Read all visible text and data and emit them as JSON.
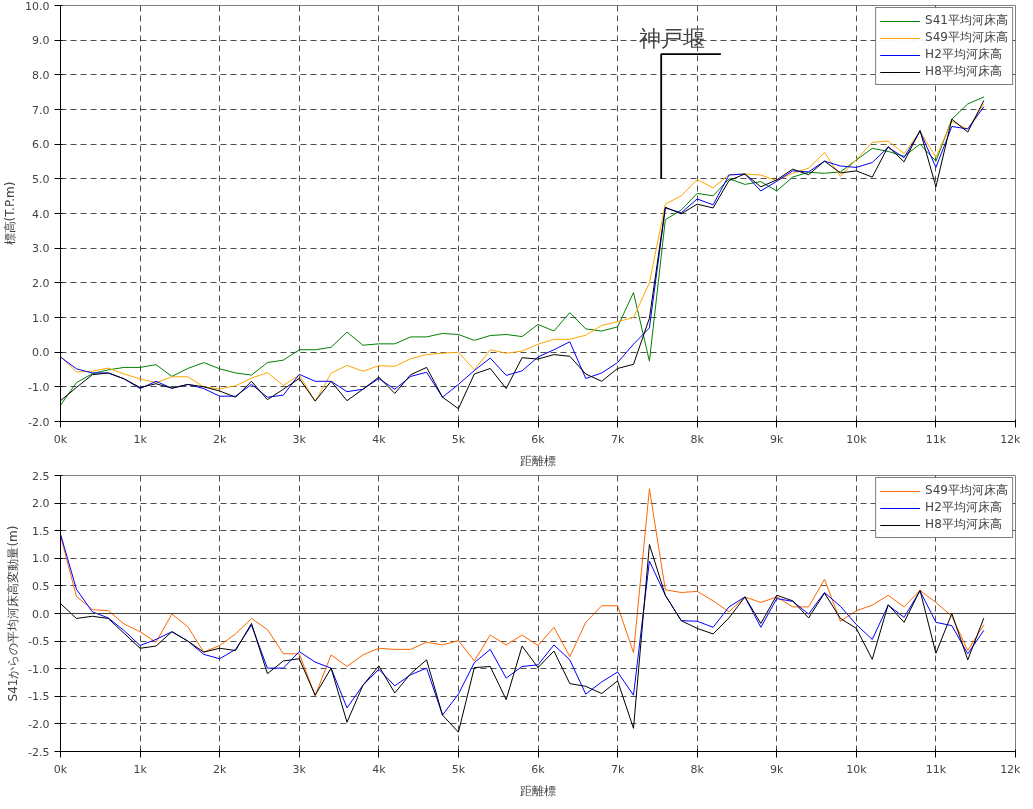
{
  "chart_data": [
    {
      "type": "line",
      "ylabel": "標高(T.P.m)",
      "xlabel": "距離標",
      "legend": "top right",
      "grid": true,
      "line_style": "solid",
      "xlim": [
        0,
        12
      ],
      "ylim": [
        -2,
        10
      ],
      "xticks": [
        {
          "value": 0,
          "label": "0k"
        },
        {
          "value": 1,
          "label": "1k"
        },
        {
          "value": 2,
          "label": "2k"
        },
        {
          "value": 3,
          "label": "3k"
        },
        {
          "value": 4,
          "label": "4k"
        },
        {
          "value": 5,
          "label": "5k"
        },
        {
          "value": 6,
          "label": "6k"
        },
        {
          "value": 7,
          "label": "7k"
        },
        {
          "value": 8,
          "label": "8k"
        },
        {
          "value": 9,
          "label": "9k"
        },
        {
          "value": 10,
          "label": "10k"
        },
        {
          "value": 11,
          "label": "11k"
        },
        {
          "value": 12,
          "label": "12k"
        }
      ],
      "yticks": [
        {
          "value": -2,
          "label": "-2.0"
        },
        {
          "value": -1,
          "label": "-1.0"
        },
        {
          "value": 0,
          "label": "0.0"
        },
        {
          "value": 1,
          "label": "1.0"
        },
        {
          "value": 2,
          "label": "2.0"
        },
        {
          "value": 3,
          "label": "3.0"
        },
        {
          "value": 4,
          "label": "4.0"
        },
        {
          "value": 5,
          "label": "5.0"
        },
        {
          "value": 6,
          "label": "6.0"
        },
        {
          "value": 7,
          "label": "7.0"
        },
        {
          "value": 8,
          "label": "8.0"
        },
        {
          "value": 9,
          "label": "9.0"
        },
        {
          "value": 10,
          "label": "10.0"
        }
      ],
      "annotations": [
        "神戸堰"
      ],
      "x": [
        0,
        0.2,
        0.4,
        0.6,
        0.8,
        1.0,
        1.2,
        1.4,
        1.6,
        1.8,
        2.0,
        2.2,
        2.4,
        2.6,
        2.8,
        3.0,
        3.2,
        3.4,
        3.6,
        3.8,
        4.0,
        4.2,
        4.4,
        4.6,
        4.8,
        5.0,
        5.2,
        5.4,
        5.6,
        5.8,
        6.0,
        6.2,
        6.4,
        6.6,
        6.8,
        7.0,
        7.2,
        7.4,
        7.6,
        7.8,
        8.0,
        8.2,
        8.4,
        8.6,
        8.8,
        9.0,
        9.2,
        9.4,
        9.6,
        9.8,
        10.0,
        10.2,
        10.4,
        10.6,
        10.8,
        11.0,
        11.2,
        11.4,
        11.6
      ],
      "series": [
        {
          "name": "S41平均河床高",
          "color": "#008000",
          "values": [
            -1.53,
            -0.88,
            -0.62,
            -0.51,
            -0.44,
            -0.44,
            -0.36,
            -0.7,
            -0.47,
            -0.3,
            -0.48,
            -0.6,
            -0.66,
            -0.3,
            -0.23,
            0.07,
            0.07,
            0.14,
            0.58,
            0.2,
            0.24,
            0.24,
            0.44,
            0.44,
            0.54,
            0.51,
            0.34,
            0.48,
            0.51,
            0.45,
            0.8,
            0.61,
            1.14,
            0.67,
            0.61,
            0.73,
            1.72,
            -0.26,
            3.82,
            4.1,
            4.58,
            4.51,
            5.0,
            4.84,
            4.92,
            4.65,
            5.05,
            5.19,
            5.16,
            5.2,
            5.54,
            5.88,
            5.79,
            5.65,
            6.0,
            5.51,
            6.72,
            7.16,
            7.36
          ]
        },
        {
          "name": "S49平均河床高",
          "color": "#ffa500",
          "values": [
            -0.12,
            -0.57,
            -0.55,
            -0.46,
            -0.63,
            -0.77,
            -0.88,
            -0.71,
            -0.71,
            -1.0,
            -1.06,
            -0.97,
            -0.75,
            -0.59,
            -0.96,
            -0.66,
            -1.42,
            -0.61,
            -0.38,
            -0.55,
            -0.39,
            -0.41,
            -0.19,
            -0.07,
            -0.03,
            0.0,
            -0.51,
            0.07,
            -0.03,
            0.03,
            0.23,
            0.37,
            0.37,
            0.49,
            0.77,
            0.88,
            1.0,
            2.0,
            4.27,
            4.51,
            4.98,
            4.74,
            5.12,
            5.14,
            5.11,
            4.95,
            5.16,
            5.31,
            5.76,
            5.07,
            5.56,
            6.05,
            6.09,
            5.73,
            6.37,
            5.62,
            6.66,
            6.43,
            7.16
          ]
        },
        {
          "name": "H2平均河床高",
          "color": "#0000ff",
          "values": [
            -0.14,
            -0.48,
            -0.6,
            -0.6,
            -0.77,
            -1.05,
            -0.84,
            -1.04,
            -0.93,
            -1.05,
            -1.27,
            -1.27,
            -0.93,
            -1.3,
            -1.24,
            -0.64,
            -0.84,
            -0.84,
            -1.14,
            -1.07,
            -0.76,
            -1.07,
            -0.7,
            -0.58,
            -1.3,
            -0.93,
            -0.53,
            -0.17,
            -0.67,
            -0.54,
            -0.14,
            0.07,
            0.3,
            -0.76,
            -0.6,
            -0.3,
            0.23,
            0.7,
            4.16,
            4.02,
            4.42,
            4.25,
            5.11,
            5.14,
            4.65,
            4.93,
            5.23,
            5.2,
            5.51,
            5.37,
            5.33,
            5.47,
            5.91,
            5.61,
            6.37,
            5.33,
            6.51,
            6.44,
            7.07
          ]
        },
        {
          "name": "H8平均河床高",
          "color": "#000000",
          "values": [
            -1.4,
            -1.02,
            -0.65,
            -0.6,
            -0.77,
            -1.02,
            -0.91,
            -1.04,
            -0.93,
            -1.0,
            -1.12,
            -1.3,
            -0.84,
            -1.37,
            -1.07,
            -0.76,
            -1.41,
            -0.84,
            -1.4,
            -1.07,
            -0.72,
            -1.19,
            -0.65,
            -0.44,
            -1.3,
            -1.63,
            -0.63,
            -0.47,
            -1.05,
            -0.16,
            -0.2,
            -0.07,
            -0.12,
            -0.63,
            -0.84,
            -0.47,
            -0.35,
            0.98,
            4.18,
            3.99,
            4.27,
            4.16,
            4.95,
            5.14,
            4.77,
            4.97,
            5.28,
            5.12,
            5.51,
            5.17,
            5.23,
            5.05,
            5.93,
            5.49,
            6.4,
            4.77,
            6.72,
            6.35,
            7.25
          ]
        }
      ]
    },
    {
      "type": "line",
      "ylabel": "S41からの平均河床高変動量(m)",
      "xlabel": "距離標",
      "legend": "top right",
      "grid": true,
      "line_style": "solid",
      "xlim": [
        0,
        12
      ],
      "ylim": [
        -2.5,
        2.5
      ],
      "xticks": [
        {
          "value": 0,
          "label": "0k"
        },
        {
          "value": 1,
          "label": "1k"
        },
        {
          "value": 2,
          "label": "2k"
        },
        {
          "value": 3,
          "label": "3k"
        },
        {
          "value": 4,
          "label": "4k"
        },
        {
          "value": 5,
          "label": "5k"
        },
        {
          "value": 6,
          "label": "6k"
        },
        {
          "value": 7,
          "label": "7k"
        },
        {
          "value": 8,
          "label": "8k"
        },
        {
          "value": 9,
          "label": "9k"
        },
        {
          "value": 10,
          "label": "10k"
        },
        {
          "value": 11,
          "label": "11k"
        },
        {
          "value": 12,
          "label": "12k"
        }
      ],
      "yticks": [
        {
          "value": -2.5,
          "label": "-2.5"
        },
        {
          "value": -2,
          "label": "-2.0"
        },
        {
          "value": -1.5,
          "label": "-1.5"
        },
        {
          "value": -1,
          "label": "-1.0"
        },
        {
          "value": -0.5,
          "label": "-0.5"
        },
        {
          "value": 0,
          "label": "0.0"
        },
        {
          "value": 0.5,
          "label": "0.5"
        },
        {
          "value": 1,
          "label": "1.0"
        },
        {
          "value": 1.5,
          "label": "1.5"
        },
        {
          "value": 2,
          "label": "2.0"
        },
        {
          "value": 2.5,
          "label": "2.5"
        }
      ],
      "ref_lines": [
        {
          "axis": "y",
          "value": 0,
          "color": "#404040",
          "line_style": "solid"
        }
      ],
      "x": [
        0,
        0.2,
        0.4,
        0.6,
        0.8,
        1.0,
        1.2,
        1.4,
        1.6,
        1.8,
        2.0,
        2.2,
        2.4,
        2.6,
        2.8,
        3.0,
        3.2,
        3.4,
        3.6,
        3.8,
        4.0,
        4.2,
        4.4,
        4.6,
        4.8,
        5.0,
        5.2,
        5.4,
        5.6,
        5.8,
        6.0,
        6.2,
        6.4,
        6.6,
        6.8,
        7.0,
        7.2,
        7.4,
        7.6,
        7.8,
        8.0,
        8.2,
        8.4,
        8.6,
        8.8,
        9.0,
        9.2,
        9.4,
        9.6,
        9.8,
        10.0,
        10.2,
        10.4,
        10.6,
        10.8,
        11.0,
        11.2,
        11.4,
        11.6
      ],
      "series": [
        {
          "name": "S49平均河床高",
          "color": "#ff6600",
          "values": [
            1.41,
            0.31,
            0.07,
            0.05,
            -0.19,
            -0.33,
            -0.52,
            -0.01,
            -0.24,
            -0.7,
            -0.58,
            -0.37,
            -0.09,
            -0.29,
            -0.73,
            -0.73,
            -1.49,
            -0.75,
            -0.96,
            -0.75,
            -0.63,
            -0.65,
            -0.65,
            -0.52,
            -0.57,
            -0.49,
            -0.86,
            -0.39,
            -0.57,
            -0.39,
            -0.58,
            -0.25,
            -0.78,
            -0.16,
            0.14,
            0.14,
            -0.71,
            2.26,
            0.43,
            0.38,
            0.4,
            0.23,
            0.03,
            0.3,
            0.2,
            0.3,
            0.12,
            0.12,
            0.62,
            -0.14,
            0.05,
            0.15,
            0.33,
            0.12,
            0.42,
            0.2,
            -0.05,
            -0.67,
            -0.21
          ]
        },
        {
          "name": "H2平均河床高",
          "color": "#0000ff",
          "values": [
            1.44,
            0.44,
            0.03,
            -0.08,
            -0.31,
            -0.58,
            -0.47,
            -0.33,
            -0.5,
            -0.74,
            -0.82,
            -0.65,
            -0.21,
            -0.99,
            -0.99,
            -0.69,
            -0.88,
            -0.99,
            -1.71,
            -1.3,
            -1.01,
            -1.31,
            -1.11,
            -0.99,
            -1.84,
            -1.46,
            -0.89,
            -0.65,
            -1.17,
            -0.96,
            -0.93,
            -0.57,
            -0.84,
            -1.46,
            -1.24,
            -1.06,
            -1.48,
            0.95,
            0.33,
            -0.13,
            -0.14,
            -0.25,
            0.12,
            0.3,
            -0.25,
            0.27,
            0.22,
            -0.01,
            0.38,
            0.13,
            -0.2,
            -0.47,
            0.15,
            -0.07,
            0.41,
            -0.16,
            -0.22,
            -0.73,
            -0.31
          ]
        },
        {
          "name": "H8平均河床高",
          "color": "#000000",
          "values": [
            0.18,
            -0.09,
            -0.05,
            -0.09,
            -0.36,
            -0.63,
            -0.59,
            -0.33,
            -0.5,
            -0.7,
            -0.63,
            -0.67,
            -0.18,
            -1.09,
            -0.86,
            -0.82,
            -1.48,
            -0.99,
            -1.97,
            -1.3,
            -0.95,
            -1.44,
            -1.09,
            -0.84,
            -1.84,
            -2.15,
            -0.98,
            -0.96,
            -1.56,
            -0.59,
            -0.98,
            -0.68,
            -1.27,
            -1.32,
            -1.45,
            -1.22,
            -2.08,
            1.25,
            0.33,
            -0.13,
            -0.27,
            -0.37,
            -0.08,
            0.3,
            -0.18,
            0.33,
            0.23,
            -0.08,
            0.37,
            -0.09,
            -0.27,
            -0.83,
            0.16,
            -0.16,
            0.42,
            -0.72,
            0.0,
            -0.84,
            -0.09
          ]
        }
      ]
    }
  ]
}
